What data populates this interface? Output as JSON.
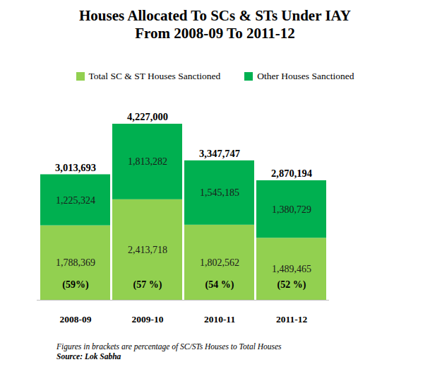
{
  "chart_data": {
    "type": "bar",
    "title": "Houses Allocated To SCs & STs Under IAY\nFrom 2008-09 To 2011-12",
    "categories": [
      "2008-09",
      "2009-10",
      "2010-11",
      "2011-12"
    ],
    "series": [
      {
        "name": "Total SC & ST Houses Sanctioned",
        "color": "#92d050",
        "values": [
          1788369,
          2413718,
          1802562,
          1489465
        ],
        "value_labels": [
          "1,788,369",
          "2,413,718",
          "1,802,562",
          "1,489,465"
        ]
      },
      {
        "name": "Other Houses Sanctioned",
        "color": "#00b050",
        "values": [
          1225324,
          1813282,
          1545185,
          1380729
        ],
        "value_labels": [
          "1,225,324",
          "1,813,282",
          "1,545,185",
          "1,380,729"
        ]
      }
    ],
    "total_labels": [
      "3,013,693",
      "4,227,000",
      "3,347,747",
      "2,870,194"
    ],
    "percentage_labels": [
      "(59%)",
      "(57 %)",
      "(54 %)",
      "(52 %)"
    ],
    "caption": "Figures in brackets are percentage of SC/STs Houses to Total Houses",
    "source": "Source: Lok Sabha",
    "ylim": [
      0,
      4227000
    ],
    "stacked": true,
    "data_labels": true,
    "legend": "top",
    "grid": false,
    "tick_labels": "x"
  }
}
